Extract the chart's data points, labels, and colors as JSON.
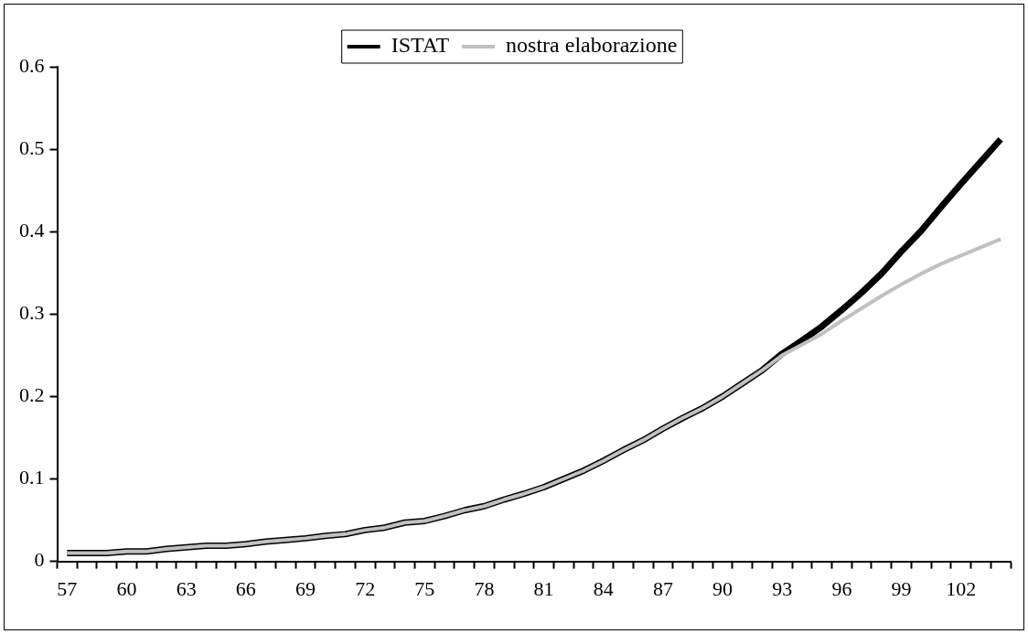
{
  "chart_data": {
    "type": "line",
    "categories": [
      "57",
      null,
      null,
      "60",
      null,
      null,
      "63",
      null,
      null,
      "66",
      null,
      null,
      "69",
      null,
      null,
      "72",
      null,
      null,
      "75",
      null,
      null,
      "78",
      null,
      null,
      "81",
      null,
      null,
      "84",
      null,
      null,
      "87",
      null,
      null,
      "90",
      null,
      null,
      "93",
      null,
      null,
      "96",
      null,
      null,
      "99",
      null,
      null,
      "102",
      null,
      null
    ],
    "series": [
      {
        "name": "ISTAT",
        "color": "#000000",
        "values": [
          0.01,
          0.01,
          0.01,
          0.012,
          0.012,
          0.015,
          0.017,
          0.019,
          0.019,
          0.021,
          0.024,
          0.026,
          0.028,
          0.031,
          0.033,
          0.038,
          0.041,
          0.047,
          0.049,
          0.055,
          0.062,
          0.067,
          0.075,
          0.082,
          0.09,
          0.1,
          0.11,
          0.122,
          0.135,
          0.147,
          0.161,
          0.174,
          0.186,
          0.2,
          0.216,
          0.232,
          0.252,
          0.268,
          0.285,
          0.305,
          0.326,
          0.349,
          0.376,
          0.401,
          0.43,
          0.458,
          0.485,
          0.512
        ]
      },
      {
        "name": "nostra elaborazione",
        "color": "#c0c0c0",
        "values": [
          0.01,
          0.01,
          0.01,
          0.012,
          0.012,
          0.015,
          0.017,
          0.019,
          0.019,
          0.021,
          0.024,
          0.026,
          0.028,
          0.031,
          0.033,
          0.038,
          0.041,
          0.047,
          0.049,
          0.055,
          0.062,
          0.067,
          0.075,
          0.082,
          0.09,
          0.1,
          0.11,
          0.122,
          0.135,
          0.147,
          0.161,
          0.174,
          0.186,
          0.2,
          0.216,
          0.232,
          0.25,
          0.263,
          0.276,
          0.292,
          0.307,
          0.322,
          0.336,
          0.349,
          0.361,
          0.371,
          0.381,
          0.391
        ]
      }
    ],
    "ylim": [
      0,
      0.6
    ],
    "yticks": [
      0,
      0.1,
      0.2,
      0.3,
      0.4,
      0.5,
      0.6
    ],
    "grid": false,
    "legend": "top",
    "marker": "none",
    "line_style": "solid"
  }
}
